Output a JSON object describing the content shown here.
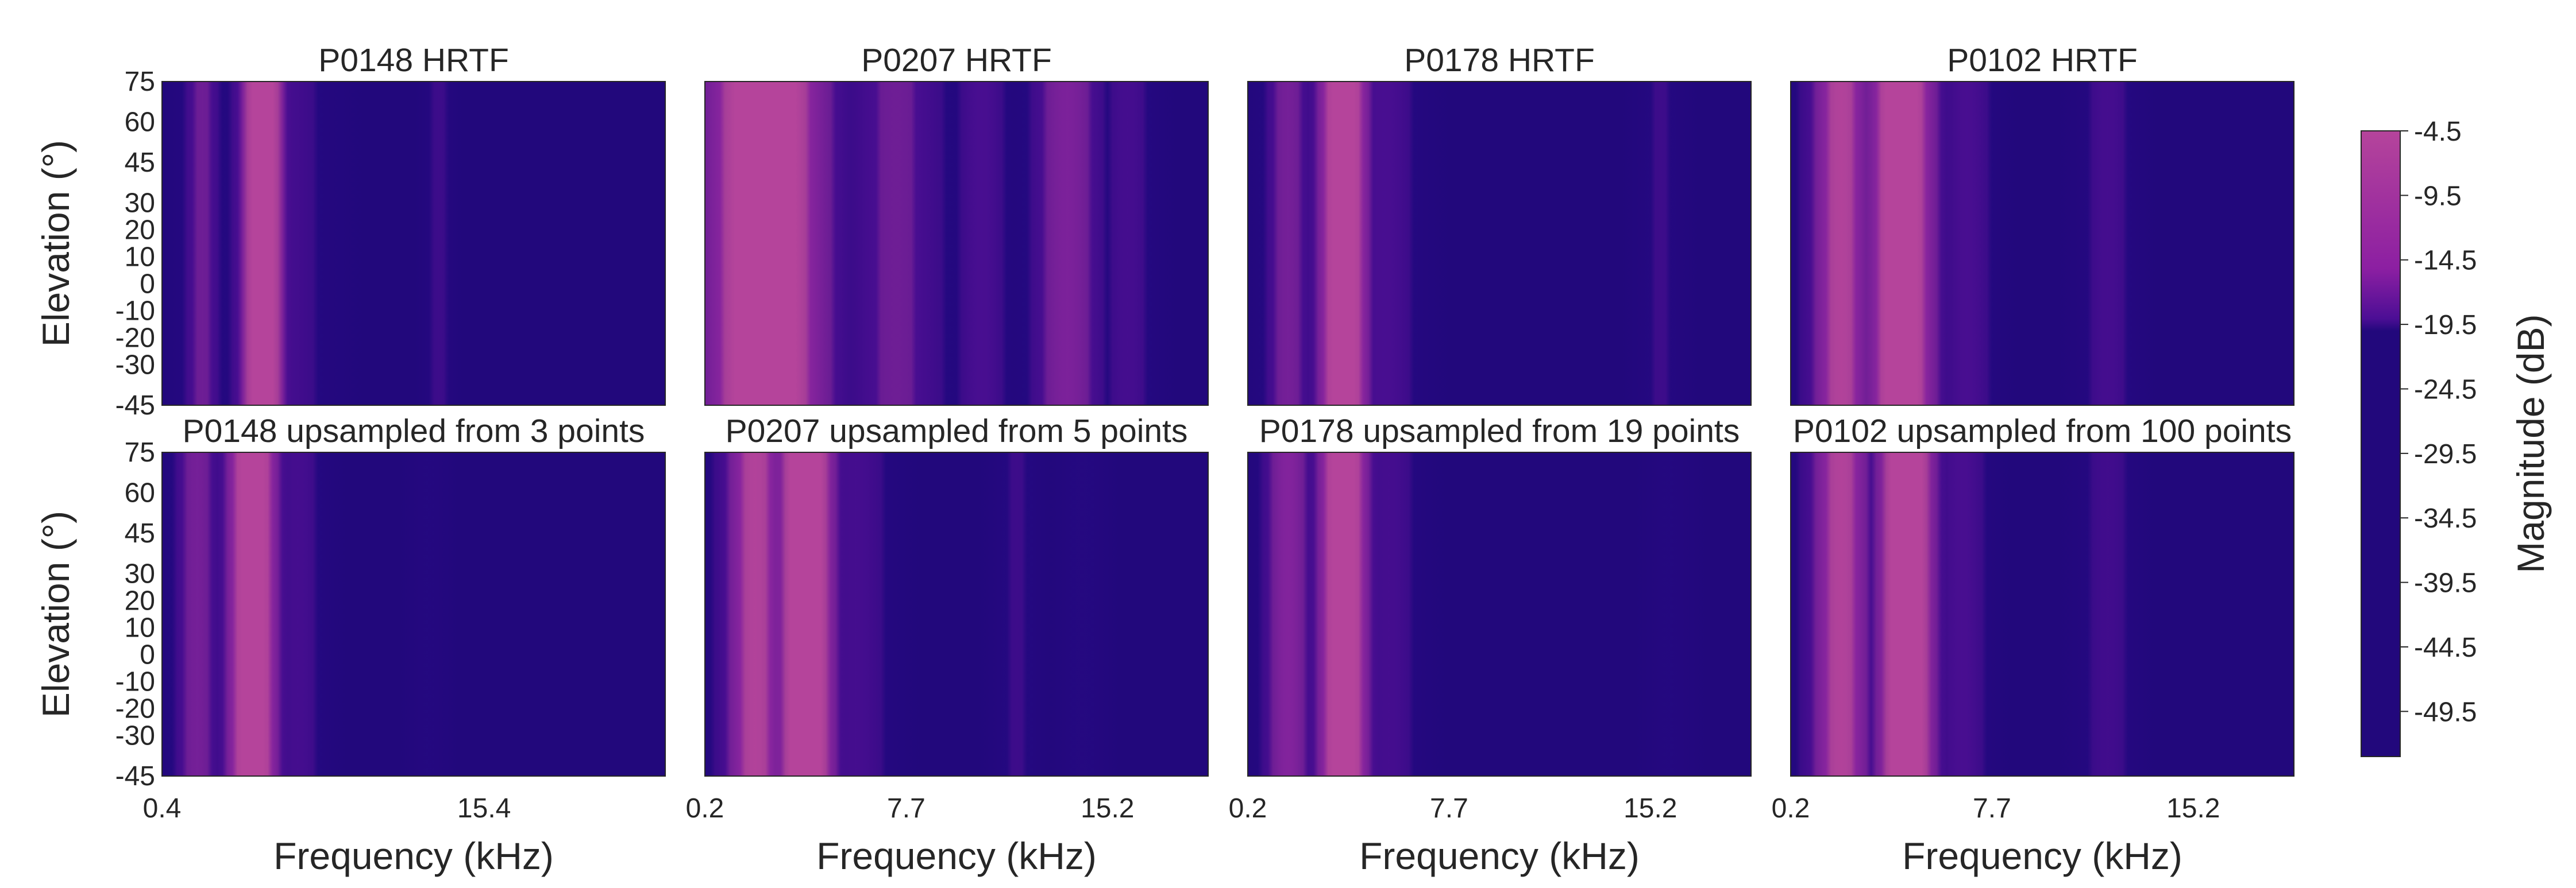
{
  "chart_data": [
    {
      "type": "heatmap",
      "row": "top",
      "title": "P0148 HRTF",
      "ylabel": "Elevation (°)",
      "yticks": [
        "75",
        "60",
        "45",
        "30",
        "20",
        "10",
        "0",
        "-10",
        "-20",
        "-30",
        "-45"
      ],
      "xlabel": "",
      "xticks": [],
      "ylim": [
        -45,
        75
      ],
      "bands": [
        {
          "f": 0.08,
          "w": 0.05,
          "a": 0.55
        },
        {
          "f": 0.2,
          "w": 0.06,
          "a": 1.0
        },
        {
          "f": 0.24,
          "w": 0.1,
          "a": 0.45
        },
        {
          "f": 0.55,
          "w": 0.03,
          "a": 0.35
        }
      ]
    },
    {
      "type": "heatmap",
      "row": "top",
      "title": "P0207 HRTF",
      "ylabel": "",
      "yticks": [],
      "xlabel": "",
      "xticks": [],
      "ylim": [
        -45,
        75
      ],
      "bands": [
        {
          "f": 0.12,
          "w": 0.16,
          "a": 1.0
        },
        {
          "f": 0.38,
          "w": 0.12,
          "a": 0.55
        },
        {
          "f": 0.55,
          "w": 0.06,
          "a": 0.5
        },
        {
          "f": 0.72,
          "w": 0.09,
          "a": 0.65
        },
        {
          "f": 0.84,
          "w": 0.06,
          "a": 0.45
        }
      ]
    },
    {
      "type": "heatmap",
      "row": "top",
      "title": "P0178 HRTF",
      "ylabel": "",
      "yticks": [],
      "xlabel": "",
      "xticks": [],
      "ylim": [
        -45,
        75
      ],
      "bands": [
        {
          "f": 0.08,
          "w": 0.06,
          "a": 0.6
        },
        {
          "f": 0.19,
          "w": 0.07,
          "a": 1.0
        },
        {
          "f": 0.27,
          "w": 0.08,
          "a": 0.5
        },
        {
          "f": 0.82,
          "w": 0.05,
          "a": 0.35
        }
      ]
    },
    {
      "type": "heatmap",
      "row": "top",
      "title": "P0102 HRTF",
      "ylabel": "",
      "yticks": [],
      "xlabel": "",
      "xticks": [],
      "ylim": [
        -45,
        75
      ],
      "bands": [
        {
          "f": 0.1,
          "w": 0.08,
          "a": 0.85
        },
        {
          "f": 0.22,
          "w": 0.09,
          "a": 1.0
        },
        {
          "f": 0.35,
          "w": 0.06,
          "a": 0.5
        },
        {
          "f": 0.63,
          "w": 0.06,
          "a": 0.45
        }
      ]
    },
    {
      "type": "heatmap",
      "row": "bottom",
      "title": "P0148 upsampled from 3 points",
      "ylabel": "Elevation (°)",
      "yticks": [
        "75",
        "60",
        "45",
        "30",
        "20",
        "10",
        "0",
        "-10",
        "-20",
        "-30",
        "-45"
      ],
      "xlabel": "Frequency (kHz)",
      "xticks": [
        "0.4",
        "15.4"
      ],
      "ylim": [
        -45,
        75
      ],
      "bands": [
        {
          "f": 0.07,
          "w": 0.06,
          "a": 0.6
        },
        {
          "f": 0.18,
          "w": 0.07,
          "a": 1.0
        },
        {
          "f": 0.27,
          "w": 0.06,
          "a": 0.45
        },
        {
          "f": 0.53,
          "w": 0.04,
          "a": 0.25
        }
      ]
    },
    {
      "type": "heatmap",
      "row": "bottom",
      "title": "P0207 upsampled from 5 points",
      "ylabel": "",
      "yticks": [],
      "xlabel": "Frequency (kHz)",
      "xticks": [
        "0.2",
        "7.7",
        "15.2"
      ],
      "ylim": [
        -45,
        75
      ],
      "bands": [
        {
          "f": 0.1,
          "w": 0.08,
          "a": 0.85
        },
        {
          "f": 0.2,
          "w": 0.08,
          "a": 1.0
        },
        {
          "f": 0.3,
          "w": 0.08,
          "a": 0.45
        },
        {
          "f": 0.62,
          "w": 0.05,
          "a": 0.35
        },
        {
          "f": 0.75,
          "w": 0.05,
          "a": 0.3
        }
      ]
    },
    {
      "type": "heatmap",
      "row": "bottom",
      "title": "P0178 upsampled from 19 points",
      "ylabel": "",
      "yticks": [],
      "xlabel": "Frequency (kHz)",
      "xticks": [
        "0.2",
        "7.7",
        "15.2"
      ],
      "ylim": [
        -45,
        75
      ],
      "bands": [
        {
          "f": 0.08,
          "w": 0.06,
          "a": 0.7
        },
        {
          "f": 0.19,
          "w": 0.07,
          "a": 1.0
        },
        {
          "f": 0.28,
          "w": 0.07,
          "a": 0.45
        },
        {
          "f": 0.84,
          "w": 0.05,
          "a": 0.25
        }
      ]
    },
    {
      "type": "heatmap",
      "row": "bottom",
      "title": "P0102 upsampled from 100 points",
      "ylabel": "",
      "yticks": [],
      "xlabel": "Frequency (kHz)",
      "xticks": [
        "0.2",
        "7.7",
        "15.2"
      ],
      "ylim": [
        -45,
        75
      ],
      "bands": [
        {
          "f": 0.1,
          "w": 0.08,
          "a": 0.85
        },
        {
          "f": 0.23,
          "w": 0.08,
          "a": 1.0
        },
        {
          "f": 0.34,
          "w": 0.06,
          "a": 0.5
        },
        {
          "f": 0.63,
          "w": 0.06,
          "a": 0.4
        }
      ]
    }
  ],
  "colorbar": {
    "label": "Magnitude (dB)",
    "ticks": [
      "-4.5",
      "-9.5",
      "-14.5",
      "-19.5",
      "-24.5",
      "-29.5",
      "-34.5",
      "-39.5",
      "-44.5",
      "-49.5"
    ],
    "colors": [
      "#b5449b",
      "#8c1fa2",
      "#4c0e95",
      "#22087c"
    ]
  }
}
